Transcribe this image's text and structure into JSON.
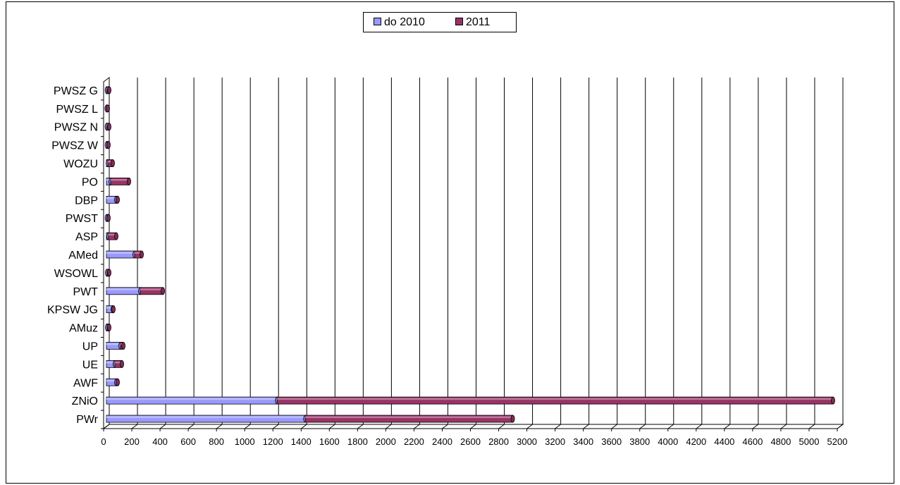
{
  "chart_data": {
    "type": "bar",
    "orientation": "horizontal",
    "stacked": true,
    "categories": [
      "PWr",
      "ZNiO",
      "AWF",
      "UE",
      "UP",
      "AMuz",
      "KPSW JG",
      "PWT",
      "WSOWL",
      "AMed",
      "ASP",
      "PWST",
      "DBP",
      "PO",
      "WOZU",
      "PWSZ W",
      "PWSZ N",
      "PWSZ L",
      "PWSZ G"
    ],
    "series": [
      {
        "name": "do 2010",
        "color": "#9999ff",
        "values": [
          1410,
          1210,
          70,
          60,
          100,
          5,
          45,
          240,
          5,
          200,
          15,
          3,
          70,
          30,
          10,
          3,
          3,
          2,
          3
        ]
      },
      {
        "name": "2011",
        "color": "#993366",
        "values": [
          1470,
          3940,
          10,
          50,
          20,
          15,
          5,
          160,
          15,
          50,
          55,
          12,
          10,
          130,
          35,
          12,
          17,
          8,
          17
        ]
      }
    ],
    "xlim": [
      0,
      5200
    ],
    "xticks": [
      "0",
      "200",
      "400",
      "600",
      "800",
      "1000",
      "1200",
      "1400",
      "1600",
      "1800",
      "2000",
      "2200",
      "2400",
      "2600",
      "2800",
      "3000",
      "3200",
      "3400",
      "3600",
      "3800",
      "4000",
      "4200",
      "4400",
      "4600",
      "4800",
      "5000",
      "5200"
    ],
    "grid": true,
    "legend_position": "top-center",
    "title": "",
    "xlabel": "",
    "ylabel": ""
  }
}
